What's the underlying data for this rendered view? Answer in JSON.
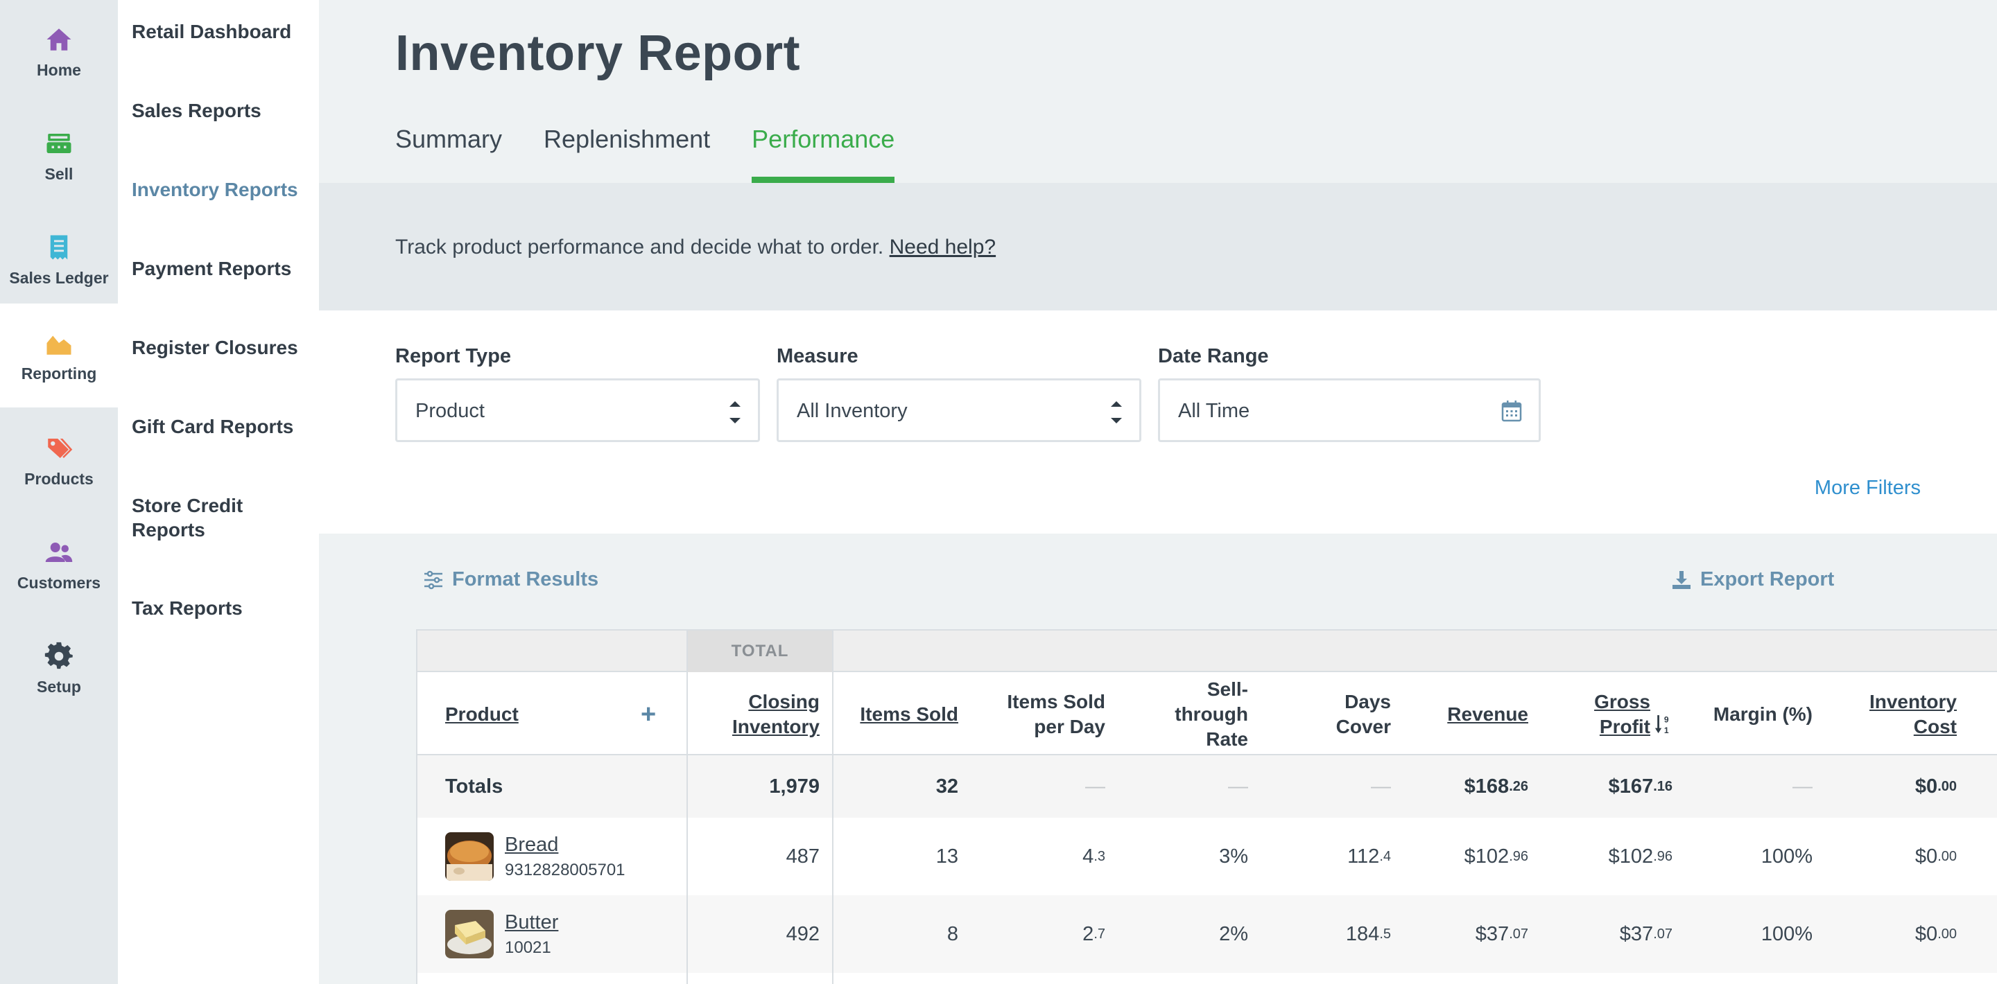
{
  "rail": {
    "items": [
      {
        "label": "Home",
        "icon": "home-icon",
        "color": "#8e5bb5"
      },
      {
        "label": "Sell",
        "icon": "register-icon",
        "color": "#3aac4b"
      },
      {
        "label": "Sales Ledger",
        "icon": "receipt-icon",
        "color": "#3fb6d5"
      },
      {
        "label": "Reporting",
        "icon": "chart-icon",
        "color": "#f2b64c"
      },
      {
        "label": "Products",
        "icon": "tag-icon",
        "color": "#f0674f"
      },
      {
        "label": "Customers",
        "icon": "people-icon",
        "color": "#8e5bb5"
      },
      {
        "label": "Setup",
        "icon": "gear-icon",
        "color": "#3a4753"
      }
    ]
  },
  "subnav": {
    "items": [
      {
        "label": "Retail Dashboard"
      },
      {
        "label": "Sales Reports"
      },
      {
        "label": "Inventory Reports"
      },
      {
        "label": "Payment Reports"
      },
      {
        "label": "Register Closures"
      },
      {
        "label": "Gift Card Reports"
      },
      {
        "label": "Store Credit Reports"
      },
      {
        "label": "Tax Reports"
      }
    ]
  },
  "page": {
    "title": "Inventory Report",
    "tabs": [
      {
        "label": "Summary"
      },
      {
        "label": "Replenishment"
      },
      {
        "label": "Performance"
      }
    ],
    "info_text": "Track product performance and decide what to order.",
    "help_link": "Need help?"
  },
  "filters": {
    "report_type": {
      "label": "Report Type",
      "value": "Product"
    },
    "measure": {
      "label": "Measure",
      "value": "All Inventory"
    },
    "date_range": {
      "label": "Date Range",
      "value": "All Time"
    },
    "more_filters": "More Filters"
  },
  "toolbar": {
    "format_results": "Format Results",
    "export_report": "Export Report"
  },
  "table": {
    "total_group": "TOTAL",
    "headers": {
      "product": "Product",
      "add": "+",
      "closing_inventory": [
        "Closing",
        "Inventory"
      ],
      "items_sold": "Items Sold",
      "items_sold_per_day": [
        "Items Sold",
        "per Day"
      ],
      "sell_through": [
        "Sell-",
        "through",
        "Rate"
      ],
      "days_cover": [
        "Days",
        "Cover"
      ],
      "revenue": "Revenue",
      "gross_profit": [
        "Gross",
        "Profit"
      ],
      "margin": "Margin (%)",
      "inventory_cost": [
        "Inventory",
        "Cost"
      ]
    },
    "totals": {
      "label": "Totals",
      "closing_inventory": "1,979",
      "items_sold": "32",
      "items_sold_per_day": "—",
      "sell_through": "—",
      "days_cover": "—",
      "revenue_main": "$168",
      "revenue_cents": ".26",
      "gross_profit_main": "$167",
      "gross_profit_cents": ".16",
      "margin": "—",
      "inventory_cost_main": "$0",
      "inventory_cost_cents": ".00"
    },
    "rows": [
      {
        "name": "Bread",
        "sku": "9312828005701",
        "closing_inventory": "487",
        "items_sold": "13",
        "items_sold_per_day_main": "4",
        "items_sold_per_day_dec": ".3",
        "sell_through": "3%",
        "days_cover_main": "112",
        "days_cover_dec": ".4",
        "revenue_main": "$102",
        "revenue_cents": ".96",
        "gross_profit_main": "$102",
        "gross_profit_cents": ".96",
        "margin": "100%",
        "inventory_cost_main": "$0",
        "inventory_cost_cents": ".00"
      },
      {
        "name": "Butter",
        "sku": "10021",
        "closing_inventory": "492",
        "items_sold": "8",
        "items_sold_per_day_main": "2",
        "items_sold_per_day_dec": ".7",
        "sell_through": "2%",
        "days_cover_main": "184",
        "days_cover_dec": ".5",
        "revenue_main": "$37",
        "revenue_cents": ".07",
        "gross_profit_main": "$37",
        "gross_profit_cents": ".07",
        "margin": "100%",
        "inventory_cost_main": "$0",
        "inventory_cost_cents": ".00"
      }
    ]
  }
}
